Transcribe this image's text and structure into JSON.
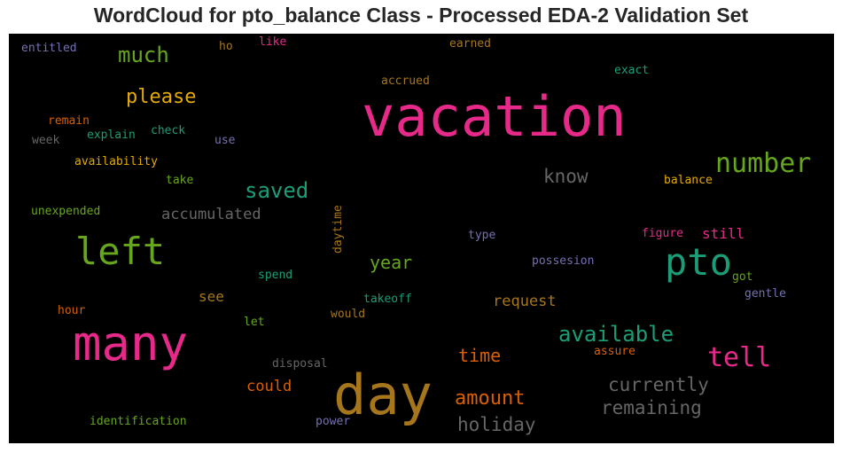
{
  "chart_data": {
    "type": "wordcloud",
    "title": "WordCloud for pto_balance Class - Processed EDA-2 Validation Set",
    "background": "#000000",
    "words": [
      {
        "text": "vacation",
        "color": "#e7298a"
      },
      {
        "text": "day",
        "color": "#a6761d"
      },
      {
        "text": "many",
        "color": "#e7298a"
      },
      {
        "text": "left",
        "color": "#66a61e"
      },
      {
        "text": "pto",
        "color": "#1b9e77"
      },
      {
        "text": "number",
        "color": "#66a61e"
      },
      {
        "text": "tell",
        "color": "#e7298a"
      },
      {
        "text": "available",
        "color": "#1b9e77"
      },
      {
        "text": "saved",
        "color": "#1b9e77"
      },
      {
        "text": "much",
        "color": "#66a61e"
      },
      {
        "text": "please",
        "color": "#e6ab02"
      },
      {
        "text": "know",
        "color": "#666666"
      },
      {
        "text": "currently",
        "color": "#666666"
      },
      {
        "text": "remaining",
        "color": "#666666"
      },
      {
        "text": "holiday",
        "color": "#666666"
      },
      {
        "text": "amount",
        "color": "#d95f02"
      },
      {
        "text": "time",
        "color": "#d95f02"
      },
      {
        "text": "year",
        "color": "#66a61e"
      },
      {
        "text": "accumulated",
        "color": "#666666"
      },
      {
        "text": "request",
        "color": "#a6761d"
      },
      {
        "text": "could",
        "color": "#d95f02"
      },
      {
        "text": "see",
        "color": "#a6761d"
      },
      {
        "text": "still",
        "color": "#e7298a"
      },
      {
        "text": "entitled",
        "color": "#7570b3"
      },
      {
        "text": "ho",
        "color": "#a6761d"
      },
      {
        "text": "like",
        "color": "#e7298a"
      },
      {
        "text": "earned",
        "color": "#a6761d"
      },
      {
        "text": "exact",
        "color": "#1b9e77"
      },
      {
        "text": "accrued",
        "color": "#a6761d"
      },
      {
        "text": "remain",
        "color": "#d95f02"
      },
      {
        "text": "explain",
        "color": "#1b9e77"
      },
      {
        "text": "check",
        "color": "#1b9e77"
      },
      {
        "text": "week",
        "color": "#666666"
      },
      {
        "text": "use",
        "color": "#7570b3"
      },
      {
        "text": "availability",
        "color": "#e6ab02"
      },
      {
        "text": "take",
        "color": "#66a61e"
      },
      {
        "text": "balance",
        "color": "#e6ab02"
      },
      {
        "text": "unexpended",
        "color": "#66a61e"
      },
      {
        "text": "daytime",
        "color": "#a6761d"
      },
      {
        "text": "type",
        "color": "#7570b3"
      },
      {
        "text": "figure",
        "color": "#e7298a"
      },
      {
        "text": "possesion",
        "color": "#7570b3"
      },
      {
        "text": "spend",
        "color": "#1b9e77"
      },
      {
        "text": "got",
        "color": "#66a61e"
      },
      {
        "text": "gentle",
        "color": "#7570b3"
      },
      {
        "text": "takeoff",
        "color": "#1b9e77"
      },
      {
        "text": "hour",
        "color": "#d95f02"
      },
      {
        "text": "would",
        "color": "#a6761d"
      },
      {
        "text": "let",
        "color": "#66a61e"
      },
      {
        "text": "assure",
        "color": "#d95f02"
      },
      {
        "text": "disposal",
        "color": "#666666"
      },
      {
        "text": "identification",
        "color": "#66a61e"
      },
      {
        "text": "power",
        "color": "#7570b3"
      }
    ]
  }
}
